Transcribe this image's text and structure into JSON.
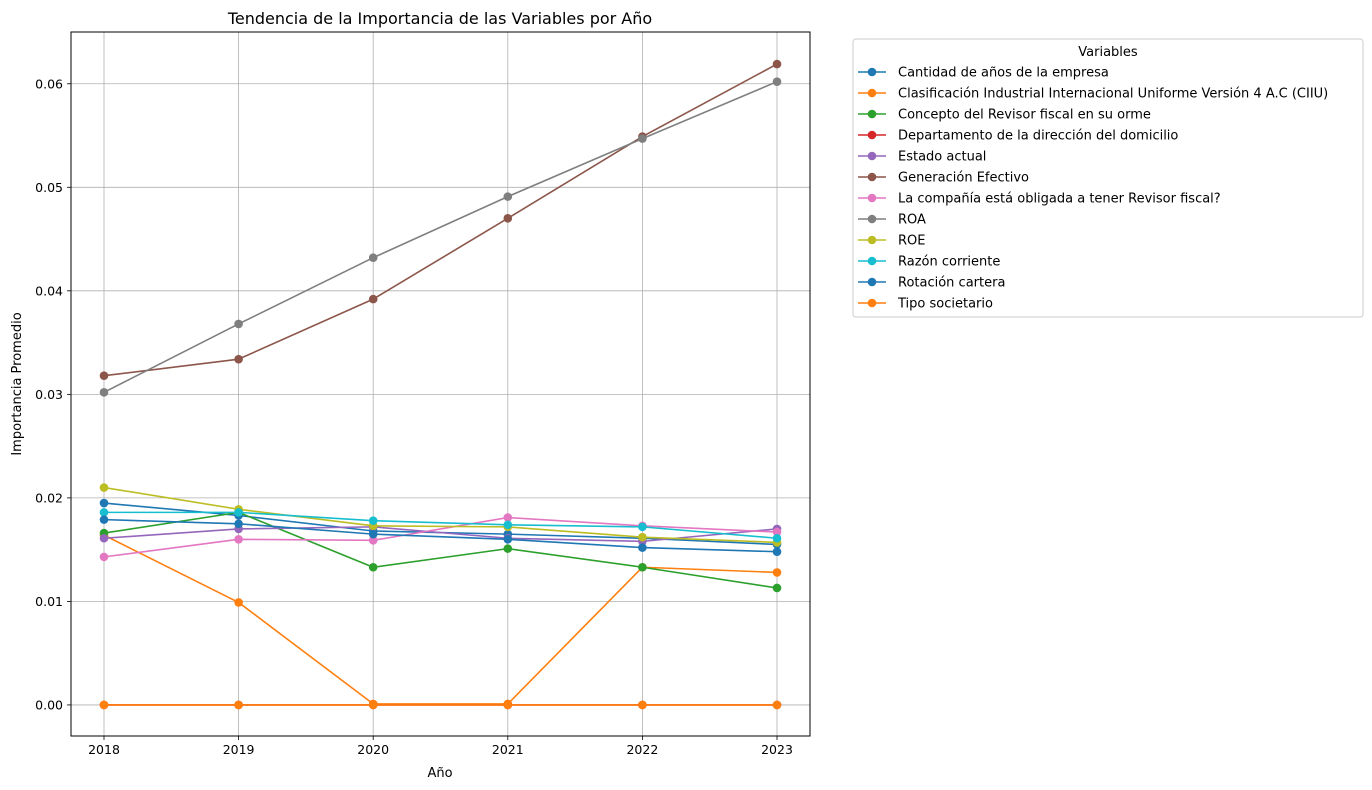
{
  "chart_data": {
    "type": "line",
    "title": "Tendencia de la Importancia de las Variables por Año",
    "xlabel": "Año",
    "ylabel": "Importancia Promedio",
    "x": [
      2018,
      2019,
      2020,
      2021,
      2022,
      2023
    ],
    "ylim": [
      -0.003,
      0.065
    ],
    "yticks": [
      0.0,
      0.01,
      0.02,
      0.03,
      0.04,
      0.05,
      0.06
    ],
    "ytick_labels": [
      "0.00",
      "0.01",
      "0.02",
      "0.03",
      "0.04",
      "0.05",
      "0.06"
    ],
    "grid": true,
    "legend": {
      "title": "Variables",
      "placement": "outside-right-top"
    },
    "series": [
      {
        "name": "Cantidad de años de la empresa",
        "color": "#1f77b4",
        "values": [
          0.0195,
          0.0183,
          0.0168,
          0.0165,
          0.0161,
          0.0155
        ]
      },
      {
        "name": "Clasificación Industrial Internacional Uniforme Versión 4 A.C (CIIU)",
        "color": "#ff7f0e",
        "values": [
          0.0164,
          0.0099,
          0.0001,
          0.0001,
          0.0133,
          0.0128
        ]
      },
      {
        "name": "Concepto del Revisor fiscal en su orme",
        "color": "#2ca02c",
        "values": [
          0.0166,
          0.0186,
          0.0133,
          0.0151,
          0.0133,
          0.0113
        ]
      },
      {
        "name": "Departamento de la dirección del domicilio",
        "color": "#d62728",
        "values": [
          0.0,
          0.0,
          0.0,
          0.0,
          0.0,
          0.0
        ]
      },
      {
        "name": "Estado actual",
        "color": "#9467bd",
        "values": [
          0.0161,
          0.017,
          0.0172,
          0.0161,
          0.0158,
          0.017
        ]
      },
      {
        "name": "Generación Efectivo",
        "color": "#8c564b",
        "values": [
          0.0318,
          0.0334,
          0.0392,
          0.047,
          0.0549,
          0.0619
        ]
      },
      {
        "name": "La compañía está obligada a tener Revisor fiscal?",
        "color": "#e377c2",
        "values": [
          0.0143,
          0.016,
          0.0159,
          0.0181,
          0.0173,
          0.0167
        ]
      },
      {
        "name": "ROA",
        "color": "#7f7f7f",
        "values": [
          0.0302,
          0.0368,
          0.0432,
          0.0491,
          0.0547,
          0.0602
        ]
      },
      {
        "name": "ROE",
        "color": "#bcbd22",
        "values": [
          0.021,
          0.0189,
          0.0173,
          0.0172,
          0.0162,
          0.0157
        ]
      },
      {
        "name": "Razón corriente",
        "color": "#17becf",
        "values": [
          0.0186,
          0.0186,
          0.0178,
          0.0174,
          0.0172,
          0.0161
        ]
      },
      {
        "name": "Rotación cartera",
        "color": "#1f77b4",
        "values": [
          0.0179,
          0.0175,
          0.0165,
          0.016,
          0.0152,
          0.0148
        ]
      },
      {
        "name": "Tipo societario",
        "color": "#ff7f0e",
        "values": [
          0.0,
          0.0,
          0.0,
          0.0,
          0.0,
          0.0
        ]
      }
    ]
  }
}
